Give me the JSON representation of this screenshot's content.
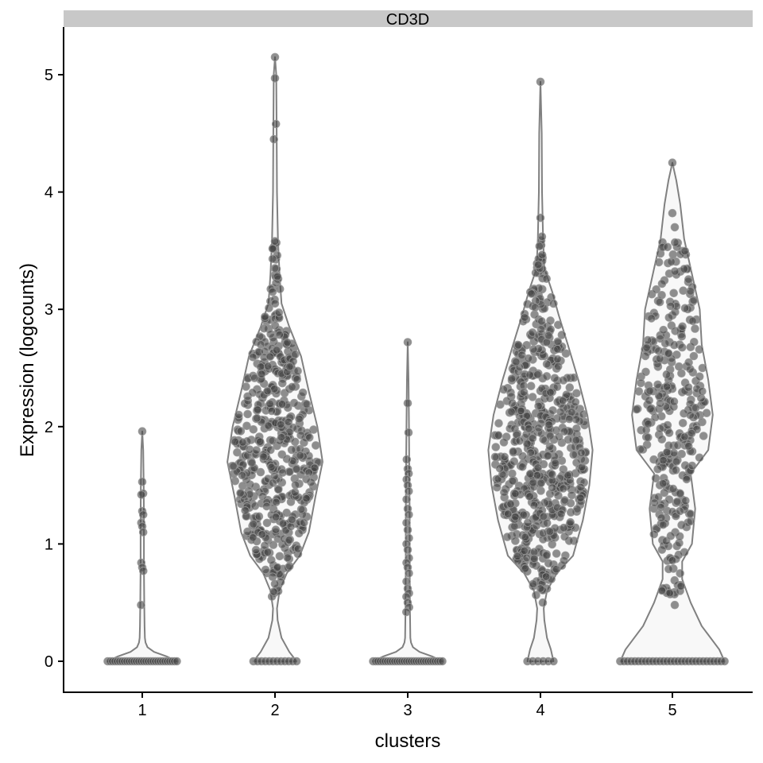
{
  "chart_data": {
    "type": "violin",
    "facet_title": "CD3D",
    "xlabel": "clusters",
    "ylabel": "Expression (logcounts)",
    "categories": [
      "1",
      "2",
      "3",
      "4",
      "5"
    ],
    "yticks": [
      "0",
      "1",
      "2",
      "3",
      "4",
      "5"
    ],
    "ylim": [
      -0.25,
      5.4
    ],
    "violins": [
      {
        "category": "1",
        "max": 1.96,
        "density": [
          [
            0,
            0.53
          ],
          [
            0.04,
            0.38
          ],
          [
            0.08,
            0.18
          ],
          [
            0.12,
            0.08
          ],
          [
            0.16,
            0.05
          ],
          [
            0.2,
            0.04
          ],
          [
            0.3,
            0.035
          ],
          [
            0.5,
            0.03
          ],
          [
            0.8,
            0.025
          ],
          [
            1.2,
            0.025
          ],
          [
            1.5,
            0.022
          ],
          [
            1.8,
            0.015
          ],
          [
            1.96,
            0.0
          ]
        ],
        "points_at_zero": 30,
        "points": [
          1.96,
          1.53,
          1.43,
          1.42,
          1.28,
          1.25,
          1.18,
          1.15,
          1.1,
          0.84,
          0.8,
          0.77,
          0.48
        ]
      },
      {
        "category": "2",
        "max": 5.15,
        "density": [
          [
            0,
            0.33
          ],
          [
            0.08,
            0.22
          ],
          [
            0.2,
            0.1
          ],
          [
            0.35,
            0.04
          ],
          [
            0.45,
            0.03
          ],
          [
            0.6,
            0.07
          ],
          [
            0.75,
            0.18
          ],
          [
            0.9,
            0.38
          ],
          [
            1.1,
            0.52
          ],
          [
            1.4,
            0.62
          ],
          [
            1.7,
            0.73
          ],
          [
            2.0,
            0.65
          ],
          [
            2.3,
            0.52
          ],
          [
            2.6,
            0.4
          ],
          [
            2.85,
            0.22
          ],
          [
            3.05,
            0.1
          ],
          [
            3.3,
            0.07
          ],
          [
            3.6,
            0.045
          ],
          [
            4.0,
            0.03
          ],
          [
            4.5,
            0.025
          ],
          [
            5.0,
            0.02
          ],
          [
            5.15,
            0.0
          ]
        ],
        "points_at_zero": 12,
        "n_body_points": 520,
        "points": [
          5.15,
          4.97,
          4.58,
          4.45,
          3.58,
          3.46,
          3.43,
          3.35,
          3.28,
          3.15,
          3.05,
          0.8,
          0.72,
          0.66
        ]
      },
      {
        "category": "3",
        "max": 2.72,
        "density": [
          [
            0,
            0.53
          ],
          [
            0.04,
            0.38
          ],
          [
            0.08,
            0.18
          ],
          [
            0.12,
            0.08
          ],
          [
            0.16,
            0.05
          ],
          [
            0.2,
            0.04
          ],
          [
            0.4,
            0.035
          ],
          [
            0.8,
            0.03
          ],
          [
            1.2,
            0.03
          ],
          [
            1.6,
            0.025
          ],
          [
            2.0,
            0.02
          ],
          [
            2.4,
            0.012
          ],
          [
            2.72,
            0.0
          ]
        ],
        "points_at_zero": 30,
        "points": [
          2.72,
          2.2,
          1.95,
          1.72,
          1.64,
          1.6,
          1.55,
          1.5,
          1.45,
          1.38,
          1.3,
          1.25,
          1.18,
          1.12,
          1.05,
          1.0,
          0.95,
          0.88,
          0.84,
          0.8,
          0.75,
          0.68,
          0.62,
          0.58,
          0.55,
          0.5,
          0.46,
          0.42
        ]
      },
      {
        "category": "4",
        "max": 4.94,
        "density": [
          [
            0,
            0.2
          ],
          [
            0.1,
            0.16
          ],
          [
            0.2,
            0.1
          ],
          [
            0.35,
            0.06
          ],
          [
            0.45,
            0.05
          ],
          [
            0.6,
            0.1
          ],
          [
            0.75,
            0.25
          ],
          [
            0.9,
            0.5
          ],
          [
            1.2,
            0.65
          ],
          [
            1.5,
            0.75
          ],
          [
            1.8,
            0.8
          ],
          [
            2.1,
            0.72
          ],
          [
            2.4,
            0.58
          ],
          [
            2.7,
            0.42
          ],
          [
            2.95,
            0.28
          ],
          [
            3.15,
            0.18
          ],
          [
            3.35,
            0.06
          ],
          [
            3.6,
            0.04
          ],
          [
            4.0,
            0.025
          ],
          [
            4.5,
            0.02
          ],
          [
            4.94,
            0.0
          ]
        ],
        "points_at_zero": 6,
        "n_body_points": 640,
        "points": [
          4.94,
          3.78,
          3.62,
          3.38,
          0.62,
          0.5
        ]
      },
      {
        "category": "5",
        "max": 4.25,
        "density": [
          [
            0,
            0.8
          ],
          [
            0.1,
            0.72
          ],
          [
            0.3,
            0.45
          ],
          [
            0.5,
            0.28
          ],
          [
            0.7,
            0.15
          ],
          [
            0.85,
            0.15
          ],
          [
            1.0,
            0.3
          ],
          [
            1.3,
            0.35
          ],
          [
            1.6,
            0.28
          ],
          [
            1.8,
            0.55
          ],
          [
            2.1,
            0.62
          ],
          [
            2.4,
            0.55
          ],
          [
            2.7,
            0.45
          ],
          [
            3.0,
            0.42
          ],
          [
            3.3,
            0.3
          ],
          [
            3.6,
            0.18
          ],
          [
            3.9,
            0.12
          ],
          [
            4.1,
            0.06
          ],
          [
            4.25,
            0.0
          ]
        ],
        "points_at_zero": 30,
        "n_body_points": 330,
        "points": [
          4.25,
          3.82,
          3.7,
          0.88,
          0.86,
          0.48
        ]
      }
    ]
  }
}
